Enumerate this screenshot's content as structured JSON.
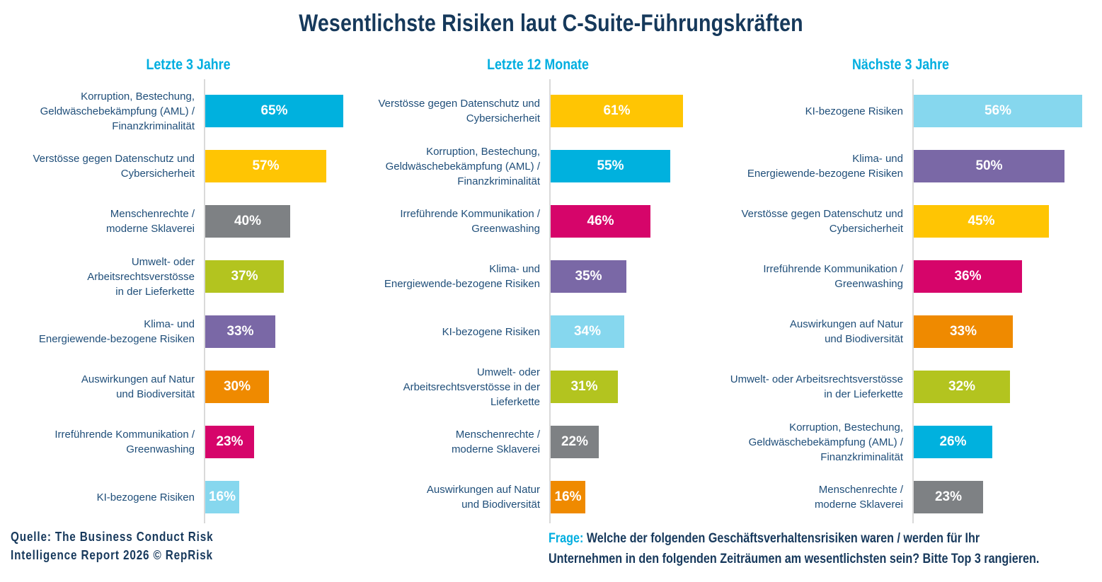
{
  "title": "Wesentlichste Risiken laut C-Suite-Führungskräften",
  "colors": {
    "title_navy": "#16395B",
    "category_label_blue": "#1F4E79",
    "header_cyan": "#00AEE0",
    "footer_navy": "#17395C",
    "axis_gray": "#D9D9D9",
    "bar_cyan": "#00B1DE",
    "bar_yellow": "#FFC503",
    "bar_gray": "#7E8184",
    "bar_green": "#B3C41F",
    "bar_purple": "#7A68A6",
    "bar_orange": "#EF8A00",
    "bar_magenta": "#D6056A",
    "bar_lightblue": "#86D7EE"
  },
  "chart_data": [
    {
      "type": "bar",
      "orientation": "horizontal",
      "title": "Letzte 3 Jahre",
      "unit": "%",
      "value_labels": "inside-center",
      "grid": false,
      "legend": false,
      "categories": [
        "Korruption, Bestechung,\nGeldwäschebekämpfung (AML) /\nFinanzkriminalität",
        "Verstösse gegen Datenschutz und\nCybersicherheit",
        "Menschenrechte /\nmoderne Sklaverei",
        "Umwelt- oder\nArbeitsrechtsverstösse\nin der Lieferkette",
        "Klima- und\nEnergiewende-bezogene Risiken",
        "Auswirkungen auf Natur\nund Biodiversität",
        "Irreführende Kommunikation /\nGreenwashing",
        "KI-bezogene Risiken"
      ],
      "values": [
        65,
        57,
        40,
        37,
        33,
        30,
        23,
        16
      ],
      "colors": [
        "#00B1DE",
        "#FFC503",
        "#7E8184",
        "#B3C41F",
        "#7A68A6",
        "#EF8A00",
        "#D6056A",
        "#86D7EE"
      ]
    },
    {
      "type": "bar",
      "orientation": "horizontal",
      "title": "Letzte 12 Monate",
      "unit": "%",
      "value_labels": "inside-center",
      "grid": false,
      "legend": false,
      "categories": [
        "Verstösse gegen Datenschutz und\nCybersicherheit",
        "Korruption, Bestechung,\nGeldwäschebekämpfung (AML) /\nFinanzkriminalität",
        "Irreführende Kommunikation /\nGreenwashing",
        "Klima- und\nEnergiewende-bezogene Risiken",
        "KI-bezogene Risiken",
        "Umwelt- oder\nArbeitsrechtsverstösse in der\nLieferkette",
        "Menschenrechte /\nmoderne Sklaverei",
        "Auswirkungen auf Natur\nund Biodiversität"
      ],
      "values": [
        61,
        55,
        46,
        35,
        34,
        31,
        22,
        16
      ],
      "colors": [
        "#FFC503",
        "#00B1DE",
        "#D6056A",
        "#7A68A6",
        "#86D7EE",
        "#B3C41F",
        "#7E8184",
        "#EF8A00"
      ]
    },
    {
      "type": "bar",
      "orientation": "horizontal",
      "title": "Nächste 3 Jahre",
      "unit": "%",
      "value_labels": "inside-center",
      "grid": false,
      "legend": false,
      "categories": [
        "KI-bezogene Risiken",
        "Klima- und\nEnergiewende-bezogene Risiken",
        "Verstösse gegen Datenschutz und\nCybersicherheit",
        "Irreführende Kommunikation /\nGreenwashing",
        "Auswirkungen auf Natur\nund Biodiversität",
        "Umwelt- oder Arbeitsrechtsverstösse\nin der Lieferkette",
        "Korruption, Bestechung,\nGeldwäschebekämpfung (AML) /\nFinanzkriminalität",
        "Menschenrechte /\nmoderne Sklaverei"
      ],
      "values": [
        56,
        50,
        45,
        36,
        33,
        32,
        26,
        23
      ],
      "colors": [
        "#86D7EE",
        "#7A68A6",
        "#FFC503",
        "#D6056A",
        "#EF8A00",
        "#B3C41F",
        "#00B1DE",
        "#7E8184"
      ]
    }
  ],
  "source": {
    "line1": "Quelle: The Business Conduct Risk",
    "line2": "Intelligence Report 2026 © RepRisk"
  },
  "question": {
    "label": "Frage:",
    "line1": " Welche der folgenden Geschäftsverhaltensrisiken waren / werden für Ihr",
    "line2": "Unternehmen in den folgenden Zeiträumen am wesentlichsten sein? Bitte Top 3 rangieren."
  }
}
